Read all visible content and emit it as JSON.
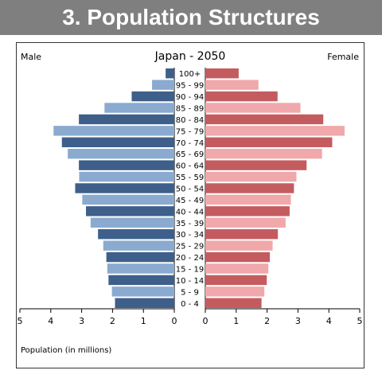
{
  "banner": {
    "title": "3. Population Structures"
  },
  "chart_data": {
    "type": "bar",
    "title": "Japan - 2050",
    "left_label": "Male",
    "right_label": "Female",
    "xlabel": "Population (in millions)",
    "xlim": [
      0,
      5
    ],
    "x_ticks": [
      "5",
      "4",
      "3",
      "2",
      "1",
      "0",
      "0",
      "1",
      "2",
      "3",
      "4",
      "5"
    ],
    "categories": [
      "100+",
      "95 - 99",
      "90 - 94",
      "85 - 89",
      "80 - 84",
      "75 - 79",
      "70 - 74",
      "65 - 69",
      "60 - 64",
      "55 - 59",
      "50 - 54",
      "45 - 49",
      "40 - 44",
      "35 - 39",
      "30 - 34",
      "25 - 29",
      "20 - 24",
      "15 - 19",
      "10 - 14",
      "5 - 9",
      "0 - 4"
    ],
    "series": [
      {
        "name": "Male",
        "values": [
          0.28,
          0.72,
          1.38,
          2.26,
          3.09,
          3.91,
          3.64,
          3.45,
          3.09,
          3.08,
          3.21,
          2.98,
          2.86,
          2.71,
          2.47,
          2.3,
          2.2,
          2.17,
          2.13,
          2.02,
          1.92
        ]
      },
      {
        "name": "Female",
        "values": [
          1.08,
          1.72,
          2.34,
          3.08,
          3.82,
          4.51,
          4.11,
          3.78,
          3.28,
          2.95,
          2.87,
          2.77,
          2.73,
          2.6,
          2.35,
          2.18,
          2.09,
          2.04,
          1.99,
          1.91,
          1.82
        ]
      }
    ],
    "colors": {
      "male_dark": "#3e5f8a",
      "male_light": "#8aaad0",
      "female_dark": "#c45c5f",
      "female_light": "#f0a8aa"
    }
  }
}
